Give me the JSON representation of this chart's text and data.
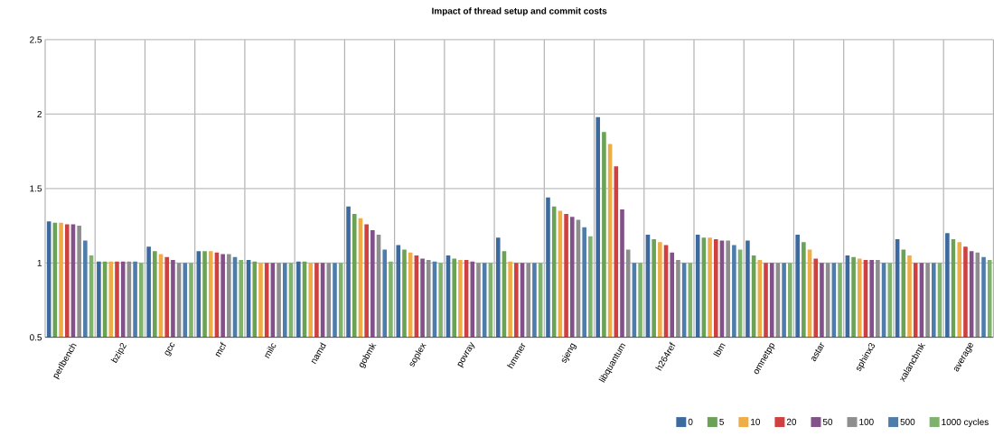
{
  "chart_data": {
    "type": "bar",
    "title": "Impact of thread setup and commit costs",
    "categories": [
      "perlbench",
      "bzip2",
      "gcc",
      "mcf",
      "milc",
      "namd",
      "gobmk",
      "soplex",
      "povray",
      "hmmer",
      "sjeng",
      "libquantum",
      "h264ref",
      "lbm",
      "omnetpp",
      "astar",
      "sphinx3",
      "xalancbmk",
      "average"
    ],
    "series": [
      {
        "name": "0",
        "color": "#3d6a9e",
        "values": [
          1.28,
          1.01,
          1.11,
          1.08,
          1.02,
          1.01,
          1.38,
          1.12,
          1.05,
          1.17,
          1.44,
          1.98,
          1.19,
          1.19,
          1.15,
          1.19,
          1.05,
          1.16,
          1.2
        ]
      },
      {
        "name": "5",
        "color": "#6aa256",
        "values": [
          1.27,
          1.01,
          1.08,
          1.08,
          1.01,
          1.01,
          1.33,
          1.09,
          1.03,
          1.08,
          1.38,
          1.88,
          1.16,
          1.17,
          1.05,
          1.14,
          1.04,
          1.09,
          1.16
        ]
      },
      {
        "name": "10",
        "color": "#efad47",
        "values": [
          1.27,
          1.01,
          1.06,
          1.08,
          1.0,
          1.0,
          1.3,
          1.07,
          1.02,
          1.01,
          1.35,
          1.8,
          1.14,
          1.17,
          1.02,
          1.09,
          1.03,
          1.05,
          1.14
        ]
      },
      {
        "name": "20",
        "color": "#cf4040",
        "values": [
          1.26,
          1.01,
          1.04,
          1.07,
          1.0,
          1.0,
          1.26,
          1.05,
          1.02,
          1.0,
          1.33,
          1.65,
          1.12,
          1.16,
          1.0,
          1.03,
          1.02,
          1.0,
          1.11
        ]
      },
      {
        "name": "50",
        "color": "#825189",
        "values": [
          1.26,
          1.01,
          1.02,
          1.06,
          1.0,
          1.0,
          1.22,
          1.03,
          1.01,
          1.0,
          1.31,
          1.36,
          1.07,
          1.15,
          1.0,
          1.0,
          1.02,
          1.0,
          1.08
        ]
      },
      {
        "name": "100",
        "color": "#8e8e8e",
        "values": [
          1.25,
          1.01,
          1.0,
          1.06,
          1.0,
          1.0,
          1.19,
          1.02,
          1.0,
          1.0,
          1.29,
          1.09,
          1.02,
          1.15,
          1.0,
          1.0,
          1.02,
          1.0,
          1.07
        ]
      },
      {
        "name": "500",
        "color": "#4f7dab",
        "values": [
          1.15,
          1.01,
          1.0,
          1.04,
          1.0,
          1.0,
          1.09,
          1.01,
          1.0,
          1.0,
          1.24,
          1.0,
          1.0,
          1.12,
          1.0,
          1.0,
          1.0,
          1.0,
          1.04
        ]
      },
      {
        "name": "1000 cycles",
        "color": "#7fb36d",
        "values": [
          1.05,
          1.0,
          1.0,
          1.02,
          1.0,
          1.0,
          1.01,
          1.0,
          1.0,
          1.0,
          1.18,
          1.0,
          1.0,
          1.09,
          1.0,
          1.0,
          1.0,
          1.0,
          1.02
        ]
      }
    ],
    "ylim": [
      0.5,
      2.5
    ],
    "yticks": [
      0.5,
      1,
      1.5,
      2,
      2.5
    ],
    "grid": true,
    "legend": "bottom right"
  }
}
